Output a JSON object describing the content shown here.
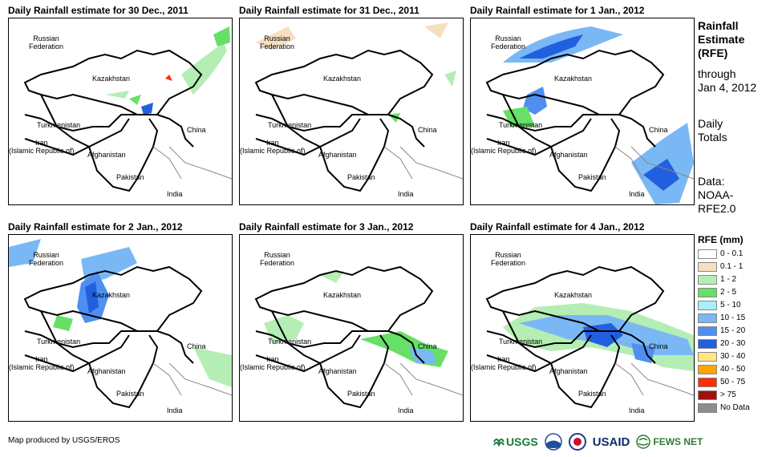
{
  "panels": [
    {
      "title": "Daily Rainfall estimate for 30 Dec., 2011"
    },
    {
      "title": "Daily Rainfall estimate for 31 Dec., 2011"
    },
    {
      "title": "Daily Rainfall estimate for 1 Jan., 2012"
    },
    {
      "title": "Daily Rainfall estimate for 2 Jan., 2012"
    },
    {
      "title": "Daily Rainfall estimate for 3 Jan., 2012"
    },
    {
      "title": "Daily Rainfall estimate for 4 Jan., 2012"
    }
  ],
  "map_labels": {
    "russia": "Russian\nFederation",
    "kazakhstan": "Kazakhstan",
    "turkmenistan": "Turkmenistan",
    "china": "China",
    "iran": "Iran\n(Islamic Republic of)",
    "afghanistan": "Afghanistan",
    "pakistan": "Pakistan",
    "india": "India"
  },
  "side": {
    "title": "Rainfall\nEstimate\n(RFE)",
    "through": "through\nJan 4, 2012",
    "daily": "Daily\nTotals",
    "data": "Data:\nNOAA-\nRFE2.0"
  },
  "legend": {
    "title": "RFE (mm)",
    "items": [
      {
        "label": "0 - 0.1",
        "color": "#ffffff"
      },
      {
        "label": "0.1 - 1",
        "color": "#f5dfbf"
      },
      {
        "label": "1 - 2",
        "color": "#b4eeb4"
      },
      {
        "label": "2 - 5",
        "color": "#66e066"
      },
      {
        "label": "5 - 10",
        "color": "#a8f0f8"
      },
      {
        "label": "10 - 15",
        "color": "#7ab8f5"
      },
      {
        "label": "15 - 20",
        "color": "#4f8ff0"
      },
      {
        "label": "20 - 30",
        "color": "#2060e0"
      },
      {
        "label": "30 - 40",
        "color": "#ffe680"
      },
      {
        "label": "40 - 50",
        "color": "#ffa500"
      },
      {
        "label": "50 - 75",
        "color": "#ff3000"
      },
      {
        "label": "> 75",
        "color": "#a01010"
      },
      {
        "label": "No Data",
        "color": "#8c8c8c"
      }
    ]
  },
  "credit": "Map produced by USGS/EROS",
  "logos": {
    "usgs": "USGS",
    "noaa": "NOAA",
    "usaid": "USAID",
    "fews": "FEWS NET"
  }
}
